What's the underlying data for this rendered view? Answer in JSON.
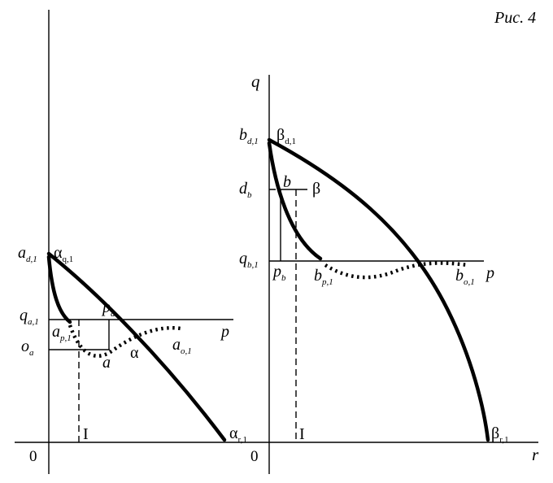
{
  "figure_label": "Рис. 4",
  "left": {
    "origin": "0",
    "a_d1": {
      "main": "a",
      "sub": "d,1"
    },
    "alpha_q1": {
      "main": "α",
      "sub": "q,1"
    },
    "q_a1": {
      "main": "q",
      "sub": "a,1"
    },
    "p_a": {
      "main": "p",
      "sub": "a"
    },
    "p_axis": "p",
    "a_p1": {
      "main": "a",
      "sub": "p,1"
    },
    "o_a": {
      "main": "o",
      "sub": "a"
    },
    "alpha": "α",
    "a_o1": {
      "main": "a",
      "sub": "o,1"
    },
    "a_point": "a",
    "I": "I",
    "alpha_r1": {
      "main": "α",
      "sub": "r,1"
    }
  },
  "right": {
    "origin": "0",
    "q_axis": "q",
    "r_axis": "r",
    "b_d1": {
      "main": "b",
      "sub": "d,1"
    },
    "beta_d1": {
      "main": "β",
      "sub": "d,1"
    },
    "d_b": {
      "main": "d",
      "sub": "b"
    },
    "b_point": "b",
    "beta": "β",
    "q_b1": {
      "main": "q",
      "sub": "b,1"
    },
    "p_b": {
      "main": "p",
      "sub": "b"
    },
    "b_p1": {
      "main": "b",
      "sub": "p,1"
    },
    "b_o1": {
      "main": "b",
      "sub": "o,1"
    },
    "p_axis": "p",
    "I": "I",
    "beta_r1": {
      "main": "β",
      "sub": "r,1"
    }
  }
}
